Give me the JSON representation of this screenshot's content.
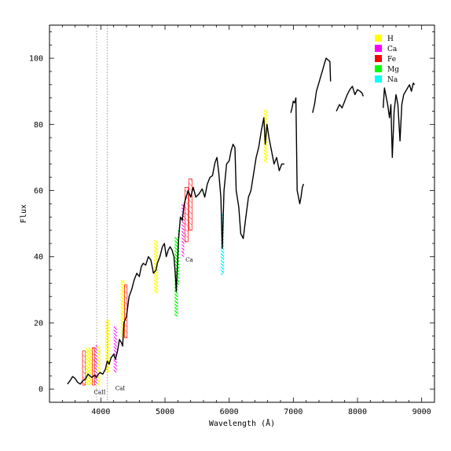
{
  "chart_data": {
    "type": "line",
    "xlabel": "Wavelength (Å)",
    "ylabel": "Flux",
    "xlim": [
      3200,
      9200
    ],
    "ylim": [
      -4,
      110
    ],
    "x_ticks": [
      "4000",
      "5000",
      "6000",
      "7000",
      "8000",
      "9000"
    ],
    "y_ticks": [
      "0",
      "20",
      "40",
      "60",
      "80",
      "100"
    ],
    "x_tick_values": [
      4000,
      5000,
      6000,
      7000,
      8000,
      9000
    ],
    "y_tick_values": [
      0,
      20,
      40,
      60,
      80,
      100
    ],
    "legend": [
      {
        "label": "H",
        "color": "#ffff00"
      },
      {
        "label": "Ca",
        "color": "#ff00ff"
      },
      {
        "label": "Fe",
        "color": "#ff0000"
      },
      {
        "label": "Mg",
        "color": "#00ff00"
      },
      {
        "label": "Na",
        "color": "#00ffff"
      }
    ],
    "reference_lines": [
      3934,
      4101
    ],
    "annotations": [
      {
        "label": "CaII",
        "x": 3890,
        "y": -1.5
      },
      {
        "label": "CaI",
        "x": 4226,
        "y": -0.3
      },
      {
        "label": "Ca",
        "x": 5320,
        "y": 38.5
      }
    ],
    "bands": [
      {
        "element": "Fe",
        "x0": 3715,
        "x1": 3760,
        "y0": 1.2,
        "y1": 11.5
      },
      {
        "element": "H",
        "x0": 3760,
        "x1": 3820,
        "y0": 1.2,
        "y1": 12.5
      },
      {
        "element": "H",
        "x0": 3820,
        "x1": 3870,
        "y0": 1.2,
        "y1": 12.5
      },
      {
        "element": "Fe",
        "x0": 3870,
        "x1": 3900,
        "y0": 1.2,
        "y1": 12.5
      },
      {
        "element": "Ca",
        "x0": 3905,
        "x1": 3945,
        "y0": 1.2,
        "y1": 13.2
      },
      {
        "element": "H",
        "x0": 3950,
        "x1": 3990,
        "y0": 1.2,
        "y1": 13.2
      },
      {
        "element": "H",
        "x0": 4070,
        "x1": 4130,
        "y0": 5.0,
        "y1": 21.0
      },
      {
        "element": "Ca",
        "x0": 4200,
        "x1": 4250,
        "y0": 5.0,
        "y1": 19.0
      },
      {
        "element": "H",
        "x0": 4310,
        "x1": 4370,
        "y0": 15.5,
        "y1": 33.0
      },
      {
        "element": "Fe",
        "x0": 4370,
        "x1": 4410,
        "y0": 15.5,
        "y1": 31.5
      },
      {
        "element": "H",
        "x0": 4830,
        "x1": 4890,
        "y0": 29.0,
        "y1": 45.0
      },
      {
        "element": "Mg",
        "x0": 5150,
        "x1": 5200,
        "y0": 22.0,
        "y1": 46.0
      },
      {
        "element": "Mg",
        "x0": 5200,
        "x1": 5220,
        "y0": 31.5,
        "y1": 48.0
      },
      {
        "element": "Ca",
        "x0": 5260,
        "x1": 5300,
        "y0": 40.0,
        "y1": 56.0
      },
      {
        "element": "Fe",
        "x0": 5310,
        "x1": 5360,
        "y0": 44.5,
        "y1": 61.0
      },
      {
        "element": "Fe",
        "x0": 5370,
        "x1": 5420,
        "y0": 48.0,
        "y1": 63.5
      },
      {
        "element": "Na",
        "x0": 5870,
        "x1": 5920,
        "y0": 34.5,
        "y1": 53.0
      },
      {
        "element": "H",
        "x0": 6540,
        "x1": 6590,
        "y0": 68.5,
        "y1": 84.5
      }
    ],
    "series": [
      {
        "color": "#000000",
        "segments": [
          [
            [
              3480,
              1.5
            ],
            [
              3520,
              2.5
            ],
            [
              3560,
              3.8
            ],
            [
              3600,
              3.2
            ],
            [
              3640,
              2.0
            ],
            [
              3680,
              1.5
            ],
            [
              3720,
              2.5
            ],
            [
              3760,
              3.0
            ],
            [
              3800,
              4.5
            ],
            [
              3830,
              4.0
            ],
            [
              3860,
              3.5
            ],
            [
              3900,
              4.2
            ],
            [
              3934,
              3.5
            ],
            [
              3960,
              4.5
            ],
            [
              3990,
              5.0
            ],
            [
              4030,
              4.5
            ],
            [
              4070,
              6.0
            ],
            [
              4101,
              8.5
            ],
            [
              4130,
              7.5
            ],
            [
              4160,
              9.5
            ],
            [
              4200,
              10.5
            ],
            [
              4226,
              9.0
            ],
            [
              4260,
              11.5
            ],
            [
              4290,
              15.0
            ],
            [
              4320,
              14.0
            ],
            [
              4340,
              13.0
            ],
            [
              4360,
              20.0
            ],
            [
              4400,
              22.0
            ],
            [
              4440,
              28.0
            ],
            [
              4480,
              30.0
            ],
            [
              4520,
              33.0
            ],
            [
              4560,
              35.0
            ],
            [
              4600,
              34.0
            ],
            [
              4630,
              37.0
            ],
            [
              4660,
              38.0
            ],
            [
              4700,
              37.5
            ],
            [
              4740,
              40.0
            ],
            [
              4780,
              39.0
            ],
            [
              4820,
              35.0
            ],
            [
              4861,
              36.0
            ],
            [
              4880,
              38.0
            ],
            [
              4920,
              40.0
            ],
            [
              4960,
              43.0
            ],
            [
              4990,
              44.0
            ],
            [
              5020,
              40.0
            ],
            [
              5050,
              42.0
            ],
            [
              5080,
              43.0
            ],
            [
              5110,
              42.0
            ],
            [
              5140,
              40.0
            ],
            [
              5167,
              33.0
            ],
            [
              5175,
              29.5
            ],
            [
              5184,
              33.0
            ],
            [
              5210,
              45.0
            ],
            [
              5240,
              52.0
            ],
            [
              5270,
              51.0
            ],
            [
              5300,
              56.0
            ],
            [
              5330,
              58.0
            ],
            [
              5360,
              60.0
            ],
            [
              5400,
              58.0
            ],
            [
              5440,
              61.0
            ],
            [
              5480,
              58.0
            ],
            [
              5530,
              59.0
            ],
            [
              5580,
              60.5
            ],
            [
              5620,
              58.0
            ],
            [
              5660,
              62.0
            ],
            [
              5700,
              64.0
            ],
            [
              5740,
              64.5
            ],
            [
              5780,
              68.5
            ],
            [
              5810,
              70.0
            ],
            [
              5840,
              65.0
            ],
            [
              5870,
              58.0
            ],
            [
              5893,
              42.5
            ],
            [
              5920,
              60.0
            ],
            [
              5960,
              68.0
            ],
            [
              6000,
              69.0
            ],
            [
              6030,
              72.0
            ],
            [
              6060,
              74.0
            ],
            [
              6090,
              73.0
            ],
            [
              6110,
              60.0
            ],
            [
              6150,
              55.0
            ],
            [
              6180,
              47.0
            ],
            [
              6220,
              45.5
            ],
            [
              6260,
              52.0
            ],
            [
              6300,
              58.0
            ],
            [
              6340,
              60.0
            ],
            [
              6380,
              65.0
            ],
            [
              6420,
              70.0
            ],
            [
              6460,
              73.0
            ],
            [
              6500,
              78.0
            ],
            [
              6540,
              82.0
            ],
            [
              6563,
              74.0
            ],
            [
              6590,
              80.0
            ],
            [
              6620,
              76.0
            ],
            [
              6660,
              72.0
            ],
            [
              6700,
              68.0
            ],
            [
              6740,
              70.0
            ],
            [
              6780,
              66.0
            ],
            [
              6820,
              68.0
            ],
            [
              6860,
              68.0
            ]
          ],
          [
            [
              6960,
              83.5
            ],
            [
              6980,
              85.0
            ],
            [
              7000,
              87.0
            ],
            [
              7020,
              86.5
            ],
            [
              7040,
              88.0
            ],
            [
              7060,
              60.0
            ],
            [
              7080,
              58.0
            ],
            [
              7100,
              56.0
            ],
            [
              7120,
              58.0
            ],
            [
              7140,
              61.0
            ],
            [
              7160,
              62.0
            ]
          ],
          [
            [
              7300,
              83.5
            ],
            [
              7330,
              86.0
            ],
            [
              7360,
              90.0
            ],
            [
              7390,
              92.0
            ],
            [
              7420,
              94.0
            ],
            [
              7450,
              96.0
            ],
            [
              7480,
              98.0
            ],
            [
              7510,
              100.0
            ],
            [
              7540,
              99.5
            ],
            [
              7570,
              99.0
            ],
            [
              7580,
              93.0
            ]
          ],
          [
            [
              7670,
              84.0
            ],
            [
              7720,
              86.0
            ],
            [
              7760,
              85.0
            ],
            [
              7800,
              87.0
            ],
            [
              7840,
              89.0
            ],
            [
              7880,
              90.5
            ],
            [
              7920,
              91.5
            ],
            [
              7960,
              89.0
            ],
            [
              8000,
              90.5
            ],
            [
              8040,
              90.0
            ],
            [
              8070,
              89.5
            ],
            [
              8090,
              88.5
            ]
          ],
          [
            [
              8400,
              85.0
            ],
            [
              8420,
              91.0
            ],
            [
              8440,
              89.0
            ],
            [
              8470,
              86.0
            ],
            [
              8498,
              82.0
            ],
            [
              8520,
              86.0
            ],
            [
              8542,
              70.0
            ],
            [
              8570,
              84.0
            ],
            [
              8600,
              89.0
            ],
            [
              8630,
              86.0
            ],
            [
              8662,
              75.0
            ],
            [
              8690,
              86.0
            ],
            [
              8720,
              89.0
            ],
            [
              8750,
              90.0
            ],
            [
              8780,
              91.0
            ],
            [
              8810,
              92.0
            ],
            [
              8840,
              90.0
            ],
            [
              8870,
              92.5
            ],
            [
              8890,
              92.0
            ]
          ]
        ]
      }
    ]
  }
}
